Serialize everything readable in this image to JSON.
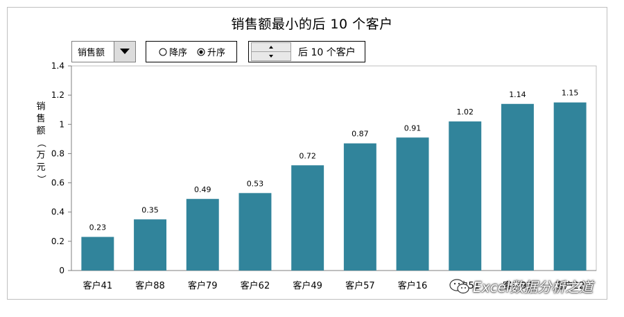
{
  "chart_data": {
    "type": "bar",
    "title": "销售额最小的后 10 个客户",
    "ylabel": "销售额（万元）",
    "xlabel": "",
    "ylim": [
      0,
      1.4
    ],
    "yticks": [
      0,
      0.2,
      0.4,
      0.6,
      0.8,
      1,
      1.2,
      1.4
    ],
    "grid": false,
    "categories": [
      "客户41",
      "客户88",
      "客户79",
      "客户62",
      "客户49",
      "客户57",
      "客户16",
      "客户51",
      "客户98",
      "客户22"
    ],
    "values": [
      0.23,
      0.35,
      0.49,
      0.53,
      0.72,
      0.87,
      0.91,
      1.02,
      1.14,
      1.15
    ],
    "bar_color": "#31849b"
  },
  "controls": {
    "metric_select": {
      "value": "销售额"
    },
    "sort_options": [
      {
        "label": "降序",
        "selected": false
      },
      {
        "label": "升序",
        "selected": true
      }
    ],
    "count_label": "后 10 个客户"
  },
  "watermark": {
    "text": "Excel数据分析之道",
    "icon": "wechat-icon"
  }
}
